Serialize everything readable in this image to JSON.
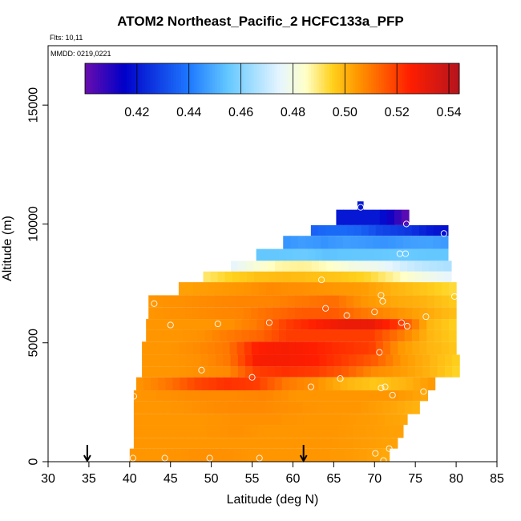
{
  "chart_data": {
    "type": "heatmap",
    "title": "ATOM2 Northeast_Pacific_2 HCFC133a_PFP",
    "subtitle_flights": "Flts: 10,11",
    "subtitle_dates": "MMDD: 0219,0221",
    "xlabel": "Latitude (deg N)",
    "ylabel": "Altitude (m)",
    "xlim": [
      30,
      85
    ],
    "ylim": [
      0,
      17500
    ],
    "xticks": [
      30,
      35,
      40,
      45,
      50,
      55,
      60,
      65,
      70,
      75,
      80,
      85
    ],
    "yticks": [
      0,
      5000,
      10000,
      15000
    ],
    "colorbar": {
      "range": [
        0.4,
        0.544
      ],
      "tick_values": [
        0.42,
        0.44,
        0.46,
        0.48,
        0.5,
        0.52,
        0.54
      ],
      "tick_labels": [
        "0.42",
        "0.44",
        "0.46",
        "0.48",
        "0.50",
        "0.52",
        "0.54"
      ],
      "placement": "top"
    },
    "colormap": [
      "#6a0dad",
      "#0000c8",
      "#1e78ff",
      "#64c8ff",
      "#e6f5ff",
      "#ffffc8",
      "#ffd21e",
      "#ff9600",
      "#ff1e00",
      "#b4141e"
    ],
    "colormap_stops": [
      0.4,
      0.415,
      0.44,
      0.455,
      0.475,
      0.485,
      0.495,
      0.505,
      0.525,
      0.544
    ],
    "altitude_bands": [
      {
        "y0": 10600,
        "y1": 10950,
        "x0": 67.9,
        "x1": 68.6,
        "values": [
          0.42,
          0.42
        ]
      },
      {
        "y0": 9950,
        "y1": 10600,
        "x0": 65.3,
        "x1": 74.2,
        "values": [
          0.42,
          0.42,
          0.42,
          0.42,
          0.41,
          0.4
        ]
      },
      {
        "y0": 9500,
        "y1": 9950,
        "x0": 62.2,
        "x1": 79.0,
        "values": [
          0.435,
          0.437,
          0.437,
          0.435,
          0.43,
          0.428,
          0.425,
          0.42,
          0.418
        ]
      },
      {
        "y0": 8950,
        "y1": 9500,
        "x0": 58.8,
        "x1": 79.0,
        "values": [
          0.445,
          0.447,
          0.445,
          0.447,
          0.446,
          0.445,
          0.447,
          0.448,
          0.446
        ]
      },
      {
        "y0": 8450,
        "y1": 8950,
        "x0": 55.5,
        "x1": 79.0,
        "values": [
          0.455,
          0.455,
          0.456,
          0.454,
          0.455,
          0.455,
          0.456,
          0.455,
          0.455
        ]
      },
      {
        "y0": 8000,
        "y1": 8450,
        "x0": 52.4,
        "x1": 79.4,
        "values": [
          0.475,
          0.482,
          0.487,
          0.488,
          0.485,
          0.48,
          0.478,
          0.472,
          0.468,
          0.466
        ]
      },
      {
        "y0": 7550,
        "y1": 8000,
        "x0": 49.0,
        "x1": 79.4,
        "values": [
          0.49,
          0.495,
          0.498,
          0.499,
          0.498,
          0.497,
          0.494,
          0.487,
          0.48,
          0.475
        ]
      },
      {
        "y0": 7000,
        "y1": 7550,
        "x0": 46.0,
        "x1": 80.0,
        "values": [
          0.503,
          0.504,
          0.505,
          0.507,
          0.506,
          0.505,
          0.504,
          0.5,
          0.497,
          0.493
        ]
      },
      {
        "y0": 6500,
        "y1": 7000,
        "x0": 42.3,
        "x1": 80.0,
        "values": [
          0.505,
          0.506,
          0.507,
          0.508,
          0.508,
          0.51,
          0.512,
          0.505,
          0.502,
          0.5,
          0.496
        ]
      },
      {
        "y0": 6000,
        "y1": 6500,
        "x0": 42.3,
        "x1": 80.0,
        "values": [
          0.505,
          0.506,
          0.507,
          0.508,
          0.512,
          0.515,
          0.515,
          0.51,
          0.506,
          0.502,
          0.498
        ]
      },
      {
        "y0": 5550,
        "y1": 6000,
        "x0": 42.0,
        "x1": 80.0,
        "values": [
          0.505,
          0.505,
          0.505,
          0.506,
          0.51,
          0.52,
          0.525,
          0.53,
          0.53,
          0.52,
          0.5,
          0.495
        ]
      },
      {
        "y0": 5050,
        "y1": 5550,
        "x0": 42.0,
        "x1": 80.0,
        "values": [
          0.505,
          0.505,
          0.506,
          0.51,
          0.513,
          0.52,
          0.52,
          0.52,
          0.52,
          0.51,
          0.5,
          0.496
        ]
      },
      {
        "y0": 4500,
        "y1": 5050,
        "x0": 41.5,
        "x1": 80.0,
        "values": [
          0.505,
          0.505,
          0.507,
          0.51,
          0.525,
          0.527,
          0.525,
          0.522,
          0.52,
          0.505,
          0.5,
          0.497
        ]
      },
      {
        "y0": 4000,
        "y1": 4500,
        "x0": 41.5,
        "x1": 80.4,
        "values": [
          0.505,
          0.505,
          0.506,
          0.51,
          0.527,
          0.527,
          0.525,
          0.52,
          0.515,
          0.505,
          0.5,
          0.495
        ]
      },
      {
        "y0": 3550,
        "y1": 4000,
        "x0": 41.5,
        "x1": 80.4,
        "values": [
          0.505,
          0.505,
          0.506,
          0.507,
          0.52,
          0.522,
          0.52,
          0.515,
          0.507,
          0.504,
          0.5,
          0.494
        ]
      },
      {
        "y0": 3000,
        "y1": 3550,
        "x0": 40.8,
        "x1": 77.4,
        "values": [
          0.505,
          0.51,
          0.518,
          0.522,
          0.52,
          0.51,
          0.506,
          0.5,
          0.497,
          0.5,
          0.505
        ]
      },
      {
        "y0": 2550,
        "y1": 3000,
        "x0": 40.5,
        "x1": 76.5,
        "values": [
          0.505,
          0.506,
          0.507,
          0.507,
          0.508,
          0.505,
          0.505,
          0.505,
          0.505,
          0.502
        ]
      },
      {
        "y0": 2000,
        "y1": 2550,
        "x0": 40.5,
        "x1": 75.5,
        "values": [
          0.505,
          0.505,
          0.506,
          0.507,
          0.507,
          0.506,
          0.505,
          0.505,
          0.503,
          0.5
        ]
      },
      {
        "y0": 1550,
        "y1": 2000,
        "x0": 40.5,
        "x1": 74.0,
        "values": [
          0.505,
          0.505,
          0.505,
          0.506,
          0.506,
          0.505,
          0.505,
          0.504,
          0.502
        ]
      },
      {
        "y0": 1000,
        "y1": 1550,
        "x0": 40.5,
        "x1": 73.5,
        "values": [
          0.505,
          0.505,
          0.505,
          0.506,
          0.505,
          0.505,
          0.505,
          0.504,
          0.503
        ]
      },
      {
        "y0": 550,
        "y1": 1000,
        "x0": 40.5,
        "x1": 72.8,
        "values": [
          0.505,
          0.505,
          0.505,
          0.505,
          0.505,
          0.505,
          0.505,
          0.504,
          0.503
        ]
      },
      {
        "y0": 0,
        "y1": 550,
        "x0": 40.0,
        "x1": 71.8,
        "values": [
          0.505,
          0.505,
          0.506,
          0.506,
          0.505,
          0.505,
          0.505,
          0.504,
          0.502
        ]
      }
    ],
    "sample_points": [
      [
        68.3,
        10700
      ],
      [
        73.9,
        10000
      ],
      [
        78.5,
        9600
      ],
      [
        73.1,
        8750
      ],
      [
        73.8,
        8750
      ],
      [
        63.5,
        7650
      ],
      [
        70.8,
        7000
      ],
      [
        71.0,
        6750
      ],
      [
        79.8,
        6950
      ],
      [
        43.0,
        6650
      ],
      [
        64.0,
        6450
      ],
      [
        66.6,
        6150
      ],
      [
        70.0,
        6300
      ],
      [
        76.3,
        6100
      ],
      [
        45.0,
        5750
      ],
      [
        50.8,
        5800
      ],
      [
        57.1,
        5850
      ],
      [
        73.3,
        5850
      ],
      [
        74.0,
        5700
      ],
      [
        70.6,
        4600
      ],
      [
        48.8,
        3850
      ],
      [
        55.0,
        3550
      ],
      [
        65.8,
        3500
      ],
      [
        62.2,
        3150
      ],
      [
        70.8,
        3100
      ],
      [
        71.3,
        3150
      ],
      [
        72.2,
        2800
      ],
      [
        76.0,
        2950
      ],
      [
        40.5,
        2750
      ],
      [
        71.8,
        550
      ],
      [
        70.1,
        350
      ],
      [
        40.4,
        150
      ],
      [
        44.3,
        150
      ],
      [
        49.8,
        150
      ],
      [
        55.9,
        150
      ],
      [
        71.1,
        50
      ]
    ],
    "flight_markers": [
      {
        "lat": 34.8,
        "label": "arrow"
      },
      {
        "lat": 61.3,
        "label": "arrow"
      }
    ]
  }
}
